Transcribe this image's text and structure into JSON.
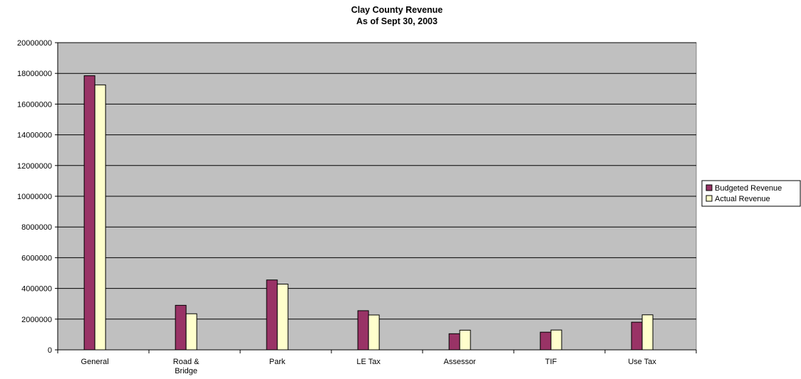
{
  "chart_data": {
    "type": "bar",
    "title": "Clay County Revenue",
    "subtitle": "As of Sept 30, 2003",
    "xlabel": "",
    "ylabel": "",
    "categories": [
      [
        "General"
      ],
      [
        "Road &",
        "Bridge"
      ],
      [
        "Park"
      ],
      [
        "LE Tax"
      ],
      [
        "Assessor"
      ],
      [
        "TIF"
      ],
      [
        "Use Tax"
      ]
    ],
    "series": [
      {
        "name": "Budgeted Revenue",
        "color": "#993366",
        "values": [
          17850000,
          2900000,
          4550000,
          2550000,
          1050000,
          1150000,
          1800000
        ]
      },
      {
        "name": "Actual Revenue",
        "color": "#FFFFCC",
        "values": [
          17250000,
          2350000,
          4280000,
          2270000,
          1280000,
          1290000,
          2280000
        ]
      }
    ],
    "ylim": [
      0,
      20000000
    ],
    "yticks": [
      "0",
      "2000000",
      "4000000",
      "6000000",
      "8000000",
      "10000000",
      "12000000",
      "14000000",
      "16000000",
      "18000000",
      "20000000"
    ],
    "grid": true,
    "plot_background": "#C0C0C0",
    "legend_position": "right"
  }
}
